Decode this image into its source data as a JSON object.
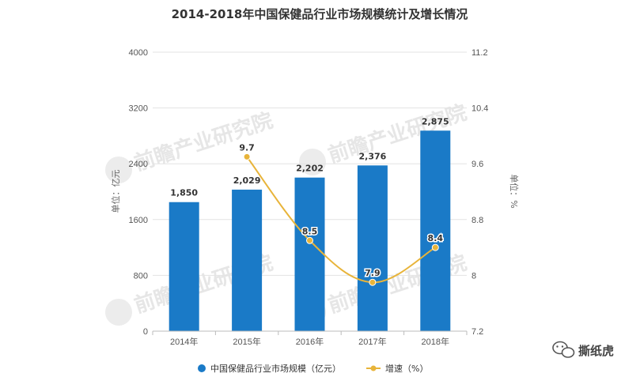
{
  "chart_data": {
    "type": "bar",
    "title": "2014-2018年中国保健品行业市场规模统计及增长情况",
    "categories": [
      "2014年",
      "2015年",
      "2016年",
      "2017年",
      "2018年"
    ],
    "y_left": {
      "label": "单位：亿元",
      "range": [
        0,
        4000
      ],
      "ticks": [
        "0",
        "800",
        "1600",
        "2400",
        "3200",
        "4000"
      ]
    },
    "y_right": {
      "label": "单位：%",
      "range": [
        7.2,
        11.2
      ],
      "ticks": [
        "7.2",
        "8",
        "8.8",
        "9.6",
        "10.4",
        "11.2"
      ]
    },
    "series": [
      {
        "name": "中国保健品行业市场规模（亿元）",
        "type": "bar",
        "axis": "left",
        "values": [
          1850,
          2029,
          2202,
          2376,
          2875
        ],
        "labels": [
          "1,850",
          "2,029",
          "2,202",
          "2,376",
          "2,875"
        ]
      },
      {
        "name": "增速（%）",
        "type": "line",
        "axis": "right",
        "values": [
          null,
          9.7,
          8.5,
          7.9,
          8.4
        ],
        "labels": [
          "",
          "9.7",
          "8.5",
          "7.9",
          "8.4"
        ]
      }
    ],
    "grid": true,
    "legend_position": "bottom"
  },
  "colors": {
    "bar": "#1a7ac7",
    "line": "#e8b43a",
    "grid": "#e3e3e3"
  },
  "watermark": {
    "text": "前瞻产业研究院"
  },
  "brand": {
    "icon": "wechat-icon",
    "text": "撕纸虎"
  }
}
